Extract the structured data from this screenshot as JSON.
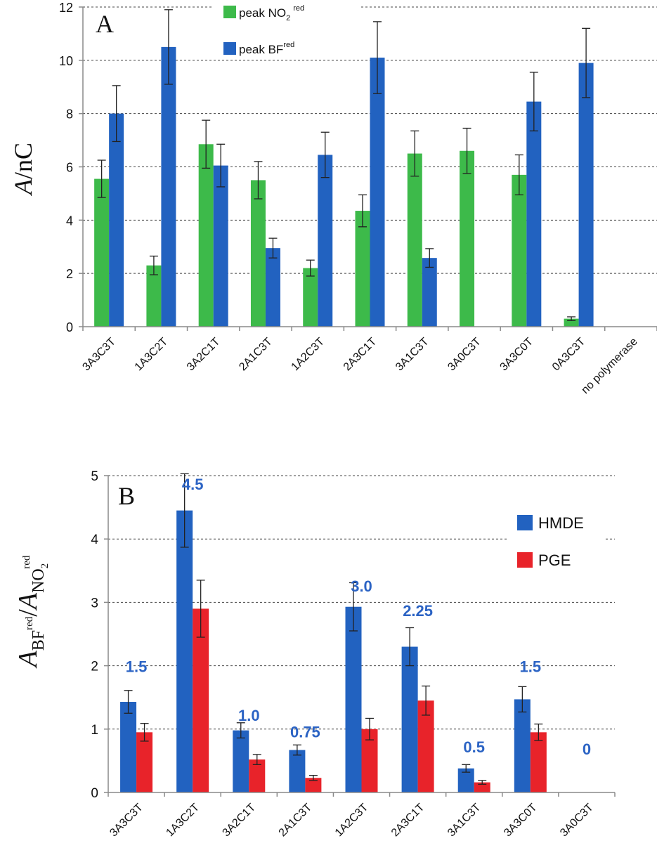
{
  "colors": {
    "green": "#3dba4a",
    "blue": "#2262c0",
    "red": "#e8232a",
    "label_blue": "#2b63c4",
    "axis": "#8a8a8a",
    "grid": "#444444",
    "text": "#111111"
  },
  "chart_data": [
    {
      "type": "bar",
      "panel_letter": "A",
      "ylabel_italic": "A",
      "ylabel_rest": "/nC",
      "ylim": [
        0,
        12
      ],
      "yticks": [
        "0",
        "2",
        "4",
        "6",
        "8",
        "10",
        "12"
      ],
      "grid": true,
      "legend": {
        "position": "top-center",
        "entries": [
          {
            "label": "peak NO",
            "sub": "2",
            "sup": "red",
            "color_key": "green"
          },
          {
            "label": "peak BF",
            "sub": "",
            "sup": "red",
            "color_key": "blue"
          }
        ]
      },
      "categories": [
        "3A3C3T",
        "1A3C2T",
        "3A2C1T",
        "2A1C3T",
        "1A2C3T",
        "2A3C1T",
        "3A1C3T",
        "3A0C3T",
        "3A3C0T",
        "0A3C3T",
        "no polymerase"
      ],
      "series": [
        {
          "name": "peak NO2 red",
          "color_key": "green",
          "values": [
            5.55,
            2.3,
            6.85,
            5.5,
            2.2,
            4.35,
            6.5,
            6.6,
            5.7,
            0.3,
            null
          ],
          "errors": [
            0.7,
            0.35,
            0.9,
            0.7,
            0.3,
            0.6,
            0.85,
            0.85,
            0.75,
            0.07,
            null
          ]
        },
        {
          "name": "peak BF red",
          "color_key": "blue",
          "values": [
            8.0,
            10.5,
            6.05,
            2.95,
            6.45,
            10.1,
            2.58,
            null,
            8.45,
            9.9,
            null
          ],
          "errors": [
            1.05,
            1.4,
            0.8,
            0.37,
            0.85,
            1.35,
            0.35,
            null,
            1.1,
            1.3,
            null
          ]
        }
      ]
    },
    {
      "type": "bar",
      "panel_letter": "B",
      "ylim": [
        0,
        5
      ],
      "yticks": [
        "0",
        "1",
        "2",
        "3",
        "4",
        "5"
      ],
      "grid": true,
      "legend": {
        "position": "top-right",
        "entries": [
          {
            "label": "HMDE",
            "color_key": "blue"
          },
          {
            "label": "PGE",
            "color_key": "red"
          }
        ]
      },
      "categories": [
        "3A3C3T",
        "1A3C2T",
        "3A2C1T",
        "2A1C3T",
        "1A2C3T",
        "2A3C1T",
        "3A1C3T",
        "3A3C0T",
        "3A0C3T"
      ],
      "annotations": [
        "1.5",
        "4.5",
        "1.0",
        "0.75",
        "3.0",
        "2.25",
        "0.5",
        "1.5",
        "0"
      ],
      "annotation_levels": [
        1.9,
        4.78,
        1.13,
        0.87,
        3.17,
        2.78,
        0.63,
        1.9,
        0.6
      ],
      "series": [
        {
          "name": "HMDE",
          "color_key": "blue",
          "values": [
            1.43,
            4.45,
            0.98,
            0.67,
            2.93,
            2.3,
            0.38,
            1.47,
            null
          ],
          "errors": [
            0.18,
            0.58,
            0.12,
            0.08,
            0.38,
            0.3,
            0.06,
            0.2,
            null
          ]
        },
        {
          "name": "PGE",
          "color_key": "red",
          "values": [
            0.95,
            2.9,
            0.52,
            0.23,
            1.0,
            1.45,
            0.16,
            0.95,
            null
          ],
          "errors": [
            0.14,
            0.45,
            0.08,
            0.04,
            0.17,
            0.23,
            0.03,
            0.13,
            null
          ]
        }
      ]
    }
  ]
}
